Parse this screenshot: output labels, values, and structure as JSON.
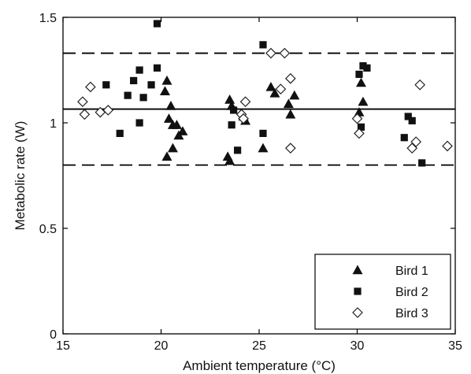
{
  "chart_data": {
    "type": "scatter",
    "title": "",
    "xlabel": "Ambient temperature (°C)",
    "ylabel": "Metabolic rate (W)",
    "xlim": [
      15,
      35
    ],
    "ylim": [
      0,
      1.5
    ],
    "xticks": [
      15,
      20,
      25,
      30,
      35
    ],
    "yticks": [
      0,
      0.5,
      1,
      1.5
    ],
    "x_tick_labels": [
      "15",
      "20",
      "25",
      "30",
      "35"
    ],
    "y_tick_labels": [
      "0",
      "0.5",
      "1",
      "1.5"
    ],
    "grid": false,
    "legend_position": "bottom-right",
    "reference_lines": [
      {
        "style": "solid",
        "y": 1.065
      },
      {
        "style": "dashed",
        "y": 1.33
      },
      {
        "style": "dashed",
        "y": 0.8
      }
    ],
    "series": [
      {
        "name": "Bird 1",
        "marker": "triangle",
        "points": [
          [
            20.3,
            1.2
          ],
          [
            20.2,
            1.15
          ],
          [
            20.5,
            1.08
          ],
          [
            20.4,
            1.02
          ],
          [
            20.6,
            0.99
          ],
          [
            20.8,
            0.99
          ],
          [
            20.3,
            0.84
          ],
          [
            21.1,
            0.96
          ],
          [
            20.9,
            0.94
          ],
          [
            20.6,
            0.88
          ],
          [
            23.5,
            1.11
          ],
          [
            23.6,
            1.08
          ],
          [
            23.4,
            0.84
          ],
          [
            23.5,
            0.82
          ],
          [
            24.2,
            1.03
          ],
          [
            24.3,
            1.01
          ],
          [
            25.2,
            0.88
          ],
          [
            25.8,
            1.14
          ],
          [
            25.6,
            1.17
          ],
          [
            26.5,
            1.09
          ],
          [
            26.8,
            1.13
          ],
          [
            26.6,
            1.04
          ],
          [
            30.1,
            1.05
          ],
          [
            30.2,
            1.19
          ],
          [
            30.3,
            1.1
          ]
        ]
      },
      {
        "name": "Bird 2",
        "marker": "square",
        "points": [
          [
            17.2,
            1.18
          ],
          [
            17.9,
            0.95
          ],
          [
            18.3,
            1.13
          ],
          [
            18.6,
            1.2
          ],
          [
            18.9,
            1.25
          ],
          [
            18.9,
            1.0
          ],
          [
            19.1,
            1.12
          ],
          [
            19.5,
            1.18
          ],
          [
            19.8,
            1.26
          ],
          [
            19.8,
            1.47
          ],
          [
            23.6,
            0.99
          ],
          [
            23.7,
            1.06
          ],
          [
            23.9,
            0.87
          ],
          [
            25.2,
            1.37
          ],
          [
            25.2,
            0.95
          ],
          [
            30.1,
            1.23
          ],
          [
            30.2,
            0.98
          ],
          [
            30.3,
            1.27
          ],
          [
            30.5,
            1.26
          ],
          [
            32.6,
            1.03
          ],
          [
            32.8,
            1.01
          ],
          [
            32.4,
            0.93
          ],
          [
            33.3,
            0.81
          ]
        ]
      },
      {
        "name": "Bird 3",
        "marker": "diamond",
        "points": [
          [
            16.0,
            1.1
          ],
          [
            16.1,
            1.04
          ],
          [
            16.4,
            1.17
          ],
          [
            16.9,
            1.05
          ],
          [
            17.3,
            1.06
          ],
          [
            24.1,
            1.04
          ],
          [
            24.3,
            1.1
          ],
          [
            24.2,
            1.02
          ],
          [
            25.6,
            1.33
          ],
          [
            26.1,
            1.16
          ],
          [
            26.3,
            1.33
          ],
          [
            26.6,
            1.21
          ],
          [
            26.6,
            0.88
          ],
          [
            30.0,
            1.02
          ],
          [
            30.1,
            0.95
          ],
          [
            32.8,
            0.88
          ],
          [
            33.0,
            0.91
          ],
          [
            33.2,
            1.18
          ],
          [
            34.6,
            0.89
          ]
        ]
      }
    ]
  }
}
